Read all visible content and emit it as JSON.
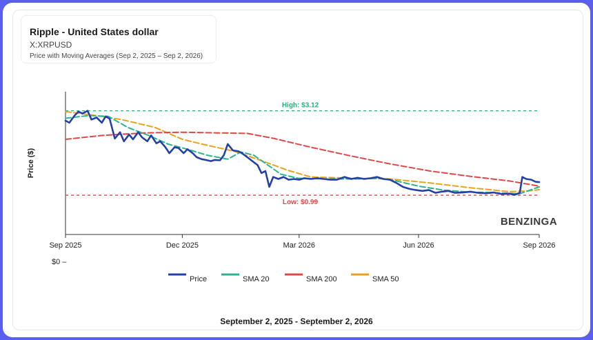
{
  "header": {
    "name": "Ripple - United States dollar",
    "symbol": "X:XRPUSD",
    "subtitle": "Price with Moving Averages (Sep 2, 2025 – Sep 2, 2026)"
  },
  "footer": {
    "range": "September 2, 2025 - September 2, 2026"
  },
  "watermark": "BENZINGA",
  "chart_data": {
    "type": "line",
    "ylabel": "Price ($)",
    "y_axis_label": "$0",
    "ylim": [
      0,
      3.6
    ],
    "x_tick_labels": [
      "Sep 2025",
      "Dec 2025",
      "Mar 2026",
      "Jun 2026",
      "Sep 2026"
    ],
    "x_ticks": [
      "2025-09-02",
      "2025-12-01",
      "2026-03-01",
      "2026-06-01",
      "2026-09-02"
    ],
    "x_range": [
      "2025-09-02",
      "2026-09-02"
    ],
    "reference_lines": [
      {
        "label": "High: $3.12",
        "value": 3.12,
        "color": "#20b27a"
      },
      {
        "label": "Low: $0.99",
        "value": 0.99,
        "color": "#e04545"
      }
    ],
    "legend_position": "bottom",
    "series": [
      {
        "name": "Price",
        "color": "#2340a8",
        "points": [
          [
            "2025-09-02",
            2.87
          ],
          [
            "2025-09-05",
            2.82
          ],
          [
            "2025-09-09",
            3.0
          ],
          [
            "2025-09-12",
            3.1
          ],
          [
            "2025-09-15",
            3.05
          ],
          [
            "2025-09-19",
            3.12
          ],
          [
            "2025-09-22",
            2.9
          ],
          [
            "2025-09-26",
            2.95
          ],
          [
            "2025-09-30",
            2.82
          ],
          [
            "2025-10-03",
            2.98
          ],
          [
            "2025-10-06",
            2.92
          ],
          [
            "2025-10-10",
            2.42
          ],
          [
            "2025-10-14",
            2.58
          ],
          [
            "2025-10-17",
            2.35
          ],
          [
            "2025-10-21",
            2.52
          ],
          [
            "2025-10-24",
            2.4
          ],
          [
            "2025-10-28",
            2.58
          ],
          [
            "2025-10-31",
            2.45
          ],
          [
            "2025-11-04",
            2.35
          ],
          [
            "2025-11-07",
            2.5
          ],
          [
            "2025-11-11",
            2.3
          ],
          [
            "2025-11-14",
            2.35
          ],
          [
            "2025-11-18",
            2.2
          ],
          [
            "2025-11-21",
            2.05
          ],
          [
            "2025-11-25",
            2.2
          ],
          [
            "2025-11-28",
            2.18
          ],
          [
            "2025-12-02",
            2.05
          ],
          [
            "2025-12-05",
            2.15
          ],
          [
            "2025-12-09",
            2.05
          ],
          [
            "2025-12-12",
            1.95
          ],
          [
            "2025-12-16",
            1.9
          ],
          [
            "2025-12-19",
            1.88
          ],
          [
            "2025-12-23",
            1.85
          ],
          [
            "2025-12-26",
            1.88
          ],
          [
            "2025-12-30",
            1.87
          ],
          [
            "2026-01-02",
            2.0
          ],
          [
            "2026-01-05",
            2.28
          ],
          [
            "2026-01-09",
            2.12
          ],
          [
            "2026-01-13",
            2.1
          ],
          [
            "2026-01-16",
            2.05
          ],
          [
            "2026-01-20",
            1.95
          ],
          [
            "2026-01-24",
            1.85
          ],
          [
            "2026-01-28",
            1.75
          ],
          [
            "2026-01-31",
            1.55
          ],
          [
            "2026-02-03",
            1.6
          ],
          [
            "2026-02-06",
            1.2
          ],
          [
            "2026-02-09",
            1.45
          ],
          [
            "2026-02-13",
            1.4
          ],
          [
            "2026-02-17",
            1.45
          ],
          [
            "2026-02-21",
            1.38
          ],
          [
            "2026-02-25",
            1.4
          ],
          [
            "2026-03-01",
            1.38
          ],
          [
            "2026-03-05",
            1.42
          ],
          [
            "2026-03-10",
            1.4
          ],
          [
            "2026-03-15",
            1.42
          ],
          [
            "2026-03-20",
            1.4
          ],
          [
            "2026-03-25",
            1.38
          ],
          [
            "2026-03-30",
            1.38
          ],
          [
            "2026-04-05",
            1.45
          ],
          [
            "2026-04-10",
            1.4
          ],
          [
            "2026-04-15",
            1.43
          ],
          [
            "2026-04-20",
            1.4
          ],
          [
            "2026-04-25",
            1.42
          ],
          [
            "2026-04-30",
            1.45
          ],
          [
            "2026-05-05",
            1.4
          ],
          [
            "2026-05-10",
            1.38
          ],
          [
            "2026-05-15",
            1.3
          ],
          [
            "2026-05-20",
            1.2
          ],
          [
            "2026-05-25",
            1.15
          ],
          [
            "2026-05-30",
            1.12
          ],
          [
            "2026-06-04",
            1.1
          ],
          [
            "2026-06-09",
            1.12
          ],
          [
            "2026-06-14",
            1.05
          ],
          [
            "2026-06-19",
            1.08
          ],
          [
            "2026-06-24",
            1.1
          ],
          [
            "2026-06-29",
            1.05
          ],
          [
            "2026-07-05",
            1.06
          ],
          [
            "2026-07-11",
            1.08
          ],
          [
            "2026-07-17",
            1.05
          ],
          [
            "2026-07-23",
            1.04
          ],
          [
            "2026-07-29",
            1.06
          ],
          [
            "2026-08-04",
            1.02
          ],
          [
            "2026-08-10",
            1.03
          ],
          [
            "2026-08-14",
            1.0
          ],
          [
            "2026-08-18",
            1.05
          ],
          [
            "2026-08-20",
            1.45
          ],
          [
            "2026-08-23",
            1.4
          ],
          [
            "2026-08-27",
            1.38
          ],
          [
            "2026-08-30",
            1.33
          ],
          [
            "2026-09-02",
            1.32
          ]
        ]
      },
      {
        "name": "SMA 20",
        "color": "#2cb58c",
        "points": [
          [
            "2025-09-02",
            2.93
          ],
          [
            "2025-09-20",
            3.0
          ],
          [
            "2025-10-05",
            2.98
          ],
          [
            "2025-10-20",
            2.7
          ],
          [
            "2025-11-05",
            2.5
          ],
          [
            "2025-11-20",
            2.28
          ],
          [
            "2025-12-05",
            2.15
          ],
          [
            "2025-12-20",
            2.0
          ],
          [
            "2026-01-05",
            1.9
          ],
          [
            "2026-01-15",
            2.08
          ],
          [
            "2026-01-25",
            2.0
          ],
          [
            "2026-02-05",
            1.75
          ],
          [
            "2026-02-15",
            1.52
          ],
          [
            "2026-02-28",
            1.42
          ],
          [
            "2026-03-20",
            1.4
          ],
          [
            "2026-04-15",
            1.4
          ],
          [
            "2026-05-01",
            1.42
          ],
          [
            "2026-05-15",
            1.35
          ],
          [
            "2026-06-01",
            1.22
          ],
          [
            "2026-06-20",
            1.12
          ],
          [
            "2026-07-10",
            1.07
          ],
          [
            "2026-08-01",
            1.05
          ],
          [
            "2026-08-18",
            1.03
          ],
          [
            "2026-09-02",
            1.2
          ]
        ]
      },
      {
        "name": "SMA 200",
        "color": "#df4747",
        "points": [
          [
            "2025-09-02",
            2.4
          ],
          [
            "2025-10-01",
            2.5
          ],
          [
            "2025-11-01",
            2.56
          ],
          [
            "2025-12-01",
            2.58
          ],
          [
            "2026-01-01",
            2.56
          ],
          [
            "2026-01-20",
            2.55
          ],
          [
            "2026-02-10",
            2.42
          ],
          [
            "2026-03-10",
            2.2
          ],
          [
            "2026-04-10",
            1.98
          ],
          [
            "2026-05-10",
            1.78
          ],
          [
            "2026-06-10",
            1.6
          ],
          [
            "2026-07-10",
            1.47
          ],
          [
            "2026-08-10",
            1.35
          ],
          [
            "2026-09-02",
            1.22
          ]
        ]
      },
      {
        "name": "SMA 50",
        "color": "#eba21a",
        "points": [
          [
            "2025-09-02",
            3.1
          ],
          [
            "2025-09-25",
            3.0
          ],
          [
            "2025-10-15",
            2.9
          ],
          [
            "2025-11-10",
            2.7
          ],
          [
            "2025-12-01",
            2.4
          ],
          [
            "2025-12-20",
            2.25
          ],
          [
            "2026-01-10",
            2.1
          ],
          [
            "2026-02-01",
            1.85
          ],
          [
            "2026-02-20",
            1.62
          ],
          [
            "2026-03-10",
            1.45
          ],
          [
            "2026-04-10",
            1.42
          ],
          [
            "2026-05-10",
            1.4
          ],
          [
            "2026-06-10",
            1.3
          ],
          [
            "2026-07-10",
            1.18
          ],
          [
            "2026-08-10",
            1.08
          ],
          [
            "2026-08-25",
            1.1
          ],
          [
            "2026-09-02",
            1.13
          ]
        ]
      }
    ]
  }
}
